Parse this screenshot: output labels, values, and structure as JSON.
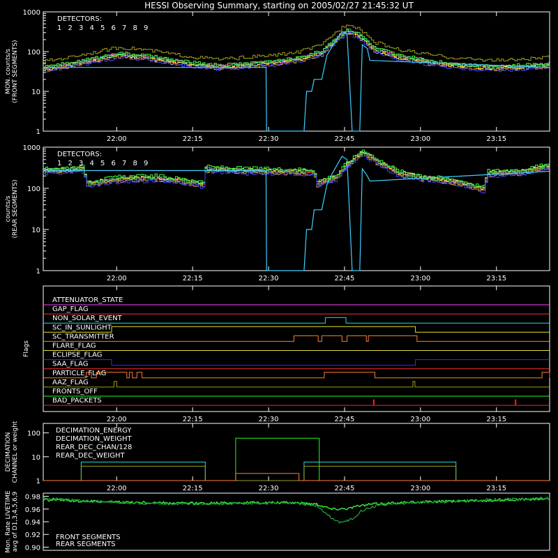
{
  "title": "HESSI Observing Summary, starting on 2005/02/27 21:45:32 UT",
  "colors": {
    "det1": "#ff3a3a",
    "det2": "#ff66cc",
    "det3": "#ff9a3a",
    "det4": "#ffff40",
    "det5": "#a0a020",
    "det6": "#40ff40",
    "det7": "#20c060",
    "det8": "#40d0ff",
    "det9": "#4040ff",
    "white": "#ffffff",
    "attenuator": "#ff40ff",
    "gap": "#ff3030",
    "nonsolar": "#20e0e0",
    "sunlight": "#e0e020",
    "transmitter": "#ff8030",
    "flare": "#e0e040",
    "eclipse": "#3030ff",
    "saa": "#ff3030",
    "particle": "#ff8030",
    "aaz": "#a0a020",
    "fronts_off": "#20ff20",
    "bad_packets": "#ff2020",
    "dec_energy": "#20ff20",
    "dec_weight": "#ff8030",
    "rear_chan": "#20e0e0",
    "rear_weight": "#a0a020",
    "front_live": "#40ff40",
    "rear_live": "#20a040"
  },
  "chart_data": [
    {
      "id": "front",
      "type": "line",
      "ylabel_lines": [
        "MON. counts/s",
        "(FRONT SEGMENTS)"
      ],
      "yscale": "log",
      "ylim": [
        1,
        1000
      ],
      "ytick_labels": [
        "1",
        "10",
        "100",
        "1000"
      ],
      "x_ticks": [
        "22:00",
        "22:15",
        "22:30",
        "22:45",
        "23:00",
        "23:15"
      ],
      "x_range_minutes_after_2145": [
        0,
        100
      ],
      "legend_title": "DETECTORS:",
      "legend_numbers": [
        "1",
        "2",
        "3",
        "4",
        "5",
        "6",
        "7",
        "8",
        "9"
      ],
      "series_profile": {
        "x": [
          0,
          5,
          10,
          15,
          20,
          25,
          30,
          35,
          40,
          45,
          50,
          55,
          58,
          60,
          62,
          65,
          70,
          75,
          80,
          85,
          90,
          95,
          100
        ],
        "y": [
          35,
          45,
          60,
          80,
          70,
          55,
          45,
          40,
          45,
          50,
          60,
          90,
          200,
          320,
          250,
          110,
          70,
          55,
          45,
          40,
          38,
          40,
          45
        ],
        "scale_brown": 1.6
      },
      "det8_dropout": {
        "x": [
          0,
          44,
          44.1,
          51.5,
          52,
          53,
          53.5,
          55,
          56,
          57,
          59,
          60,
          61,
          62.5,
          63,
          64,
          64.5,
          100
        ],
        "y": [
          40,
          40,
          1,
          1,
          10,
          10,
          20,
          20,
          80,
          130,
          320,
          280,
          1,
          1,
          150,
          120,
          60,
          40
        ]
      }
    },
    {
      "id": "rear",
      "type": "line",
      "ylabel_lines": [
        "counts/s",
        "(REAR SEGMENTS)"
      ],
      "yscale": "log",
      "ylim": [
        1,
        1000
      ],
      "ytick_labels": [
        "1",
        "10",
        "100",
        "1000"
      ],
      "x_ticks": [
        "22:00",
        "22:15",
        "22:30",
        "22:45",
        "23:00",
        "23:15"
      ],
      "legend_title": "DETECTORS:",
      "legend_numbers": [
        "1",
        "2",
        "3",
        "4",
        "5",
        "6",
        "7",
        "8",
        "9"
      ],
      "series_profile": {
        "x": [
          0,
          8,
          8.2,
          15,
          22,
          31.5,
          31.7,
          38,
          44,
          53.5,
          53.7,
          58,
          61,
          63,
          66,
          70,
          75,
          82,
          86,
          87.2,
          87.4,
          95,
          100
        ],
        "y": [
          250,
          280,
          120,
          160,
          170,
          120,
          280,
          260,
          250,
          240,
          120,
          180,
          450,
          700,
          400,
          220,
          170,
          130,
          95,
          90,
          220,
          240,
          330
        ]
      },
      "det8_dropout": {
        "x": [
          0,
          44,
          44.1,
          51.5,
          52,
          53,
          53.5,
          55,
          56,
          57,
          59,
          60,
          61,
          62.5,
          63,
          64,
          64.5,
          100
        ],
        "y": [
          270,
          270,
          1,
          1,
          10,
          10,
          30,
          30,
          120,
          220,
          600,
          500,
          1,
          1,
          300,
          200,
          150,
          260
        ]
      }
    },
    {
      "id": "flags",
      "type": "flags",
      "ylabel_lines": [
        "Flags"
      ],
      "x_ticks": [
        "22:00",
        "22:15",
        "22:30",
        "22:45",
        "23:00",
        "23:15"
      ],
      "flags": [
        {
          "name": "ATTENUATOR_STATE",
          "color": "#ff40ff",
          "segments": []
        },
        {
          "name": "GAP_FLAG",
          "color": "#ff3030",
          "segments": []
        },
        {
          "name": "NON_SOLAR_EVENT",
          "color": "#20e0e0",
          "segments": [
            [
              55.7,
              59.8
            ]
          ]
        },
        {
          "name": "SC_IN_SUNLIGHT",
          "color": "#e0e020",
          "segments": [
            [
              13.5,
              73.5
            ]
          ]
        },
        {
          "name": "SC_TRANSMITTER",
          "color": "#ff8030",
          "segments": [
            [
              49.5,
              54.3
            ],
            [
              55.0,
              59.0
            ],
            [
              60.0,
              63.8
            ],
            [
              64.2,
              73.8
            ]
          ]
        },
        {
          "name": "FLARE_FLAG",
          "color": "#e0e040",
          "segments": []
        },
        {
          "name": "ECLIPSE_FLAG",
          "color": "#3030ff",
          "segments": [
            [
              0,
              13.5
            ],
            [
              73.5,
              100
            ]
          ],
          "low": true
        },
        {
          "name": "SAA_FLAG",
          "color": "#ff3030",
          "segments": []
        },
        {
          "name": "PARTICLE_FLAG",
          "color": "#ff8030",
          "segments": [
            [
              8.5,
              9.5
            ],
            [
              10.5,
              16.5
            ],
            [
              17.0,
              17.6
            ],
            [
              18.5,
              19.5
            ],
            [
              55.5,
              65.5
            ],
            [
              98.5,
              100
            ]
          ]
        },
        {
          "name": "AAZ_FLAG",
          "color": "#a0a020",
          "segments": [
            [
              14.0,
              14.5
            ],
            [
              73.0,
              73.4
            ]
          ]
        },
        {
          "name": "FRONTS_OFF",
          "color": "#20ff20",
          "segments": []
        },
        {
          "name": "BAD_PACKETS",
          "color": "#ff2020",
          "segments": [
            [
              65.2,
              65.35
            ],
            [
              93.2,
              93.35
            ]
          ]
        }
      ]
    },
    {
      "id": "decimation",
      "type": "line",
      "ylabel_lines": [
        "DECIMATION",
        "CHANNEL or weight"
      ],
      "yscale": "log",
      "ylim": [
        1,
        250
      ],
      "ytick_labels": [
        "1",
        "10",
        "100"
      ],
      "x_ticks": [
        "22:00",
        "22:15",
        "22:30",
        "22:45",
        "23:00",
        "23:15"
      ],
      "legend": [
        "DECIMATION_ENERGY",
        "DECIMATION_WEIGHT",
        "REAR_DEC_CHAN/128",
        "REAR_DEC_WEIGHT"
      ],
      "series": [
        {
          "name": "REAR_DEC_CHAN/128",
          "color": "#20e0e0",
          "x": [
            0,
            7.5,
            7.5,
            32.0,
            32.0,
            51.5,
            51.5,
            81.5,
            81.5,
            100
          ],
          "y": [
            1,
            1,
            6,
            6,
            1,
            1,
            6,
            6,
            1,
            1
          ]
        },
        {
          "name": "REAR_DEC_WEIGHT",
          "color": "#a0a020",
          "x": [
            0,
            7.5,
            7.5,
            32.0,
            32.0,
            51.5,
            51.5,
            81.5,
            81.5,
            100
          ],
          "y": [
            1,
            1,
            4,
            4,
            1,
            1,
            4,
            4,
            1,
            1
          ]
        },
        {
          "name": "DECIMATION_ENERGY",
          "color": "#20ff20",
          "x": [
            0,
            38.0,
            38.0,
            54.5,
            54.5,
            100
          ],
          "y": [
            1,
            1,
            60,
            60,
            1,
            1
          ]
        },
        {
          "name": "DECIMATION_WEIGHT",
          "color": "#ff8030",
          "x": [
            0,
            38.0,
            38.0,
            50.5,
            50.5,
            100
          ],
          "y": [
            1,
            1,
            2,
            2,
            1,
            1
          ]
        }
      ]
    },
    {
      "id": "livetime",
      "type": "line",
      "ylabel_lines": [
        "Mon. Rate LIVETIME",
        "avg of D1,3,4,5,6,9"
      ],
      "ylim": [
        0.895,
        0.985
      ],
      "ytick_labels": [
        "0.90",
        "0.92",
        "0.94",
        "0.96",
        "0.98"
      ],
      "legend": [
        "FRONT SEGMENTS",
        "REAR SEGMENTS"
      ],
      "series": [
        {
          "name": "FRONT SEGMENTS",
          "color": "#40ff40",
          "x": [
            0,
            10,
            20,
            30,
            40,
            50,
            54,
            57,
            60,
            62,
            65,
            70,
            80,
            90,
            100
          ],
          "y": [
            0.975,
            0.972,
            0.97,
            0.969,
            0.97,
            0.97,
            0.968,
            0.96,
            0.961,
            0.964,
            0.968,
            0.97,
            0.972,
            0.974,
            0.976
          ]
        },
        {
          "name": "REAR SEGMENTS",
          "color": "#20a040",
          "x": [
            0,
            10,
            20,
            30,
            40,
            50,
            54,
            57,
            59,
            61,
            63,
            66,
            70,
            80,
            90,
            100
          ],
          "y": [
            0.977,
            0.972,
            0.969,
            0.968,
            0.969,
            0.969,
            0.965,
            0.945,
            0.938,
            0.945,
            0.958,
            0.966,
            0.969,
            0.972,
            0.975,
            0.977
          ]
        }
      ]
    }
  ]
}
